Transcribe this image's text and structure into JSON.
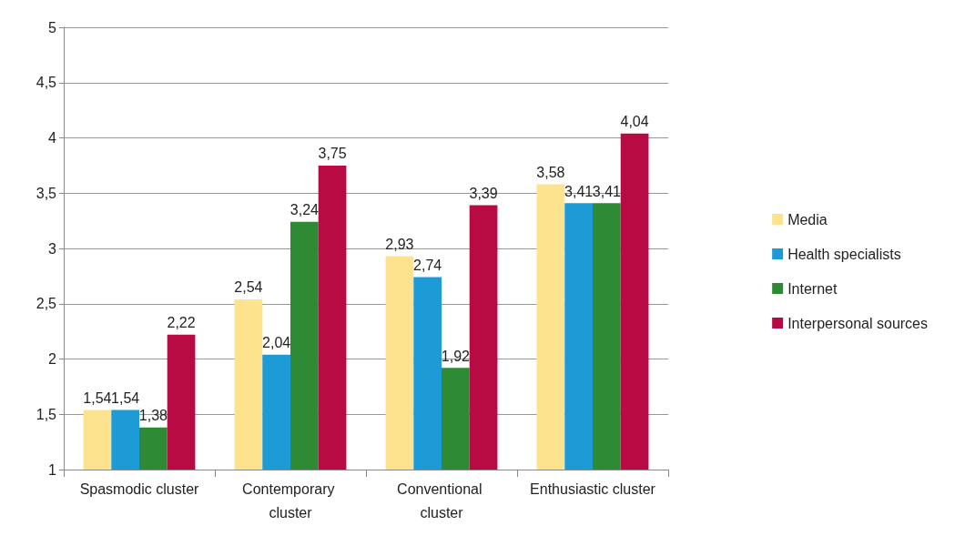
{
  "chart_data": {
    "type": "bar",
    "categories": [
      "Spasmodic cluster",
      "Contemporary cluster",
      "Conventional cluster",
      "Enthusiastic cluster"
    ],
    "series": [
      {
        "name": "Media",
        "color": "#fde38d",
        "values": [
          1.54,
          2.54,
          2.93,
          3.58
        ],
        "value_labels": [
          "1,54",
          "2,54",
          "2,93",
          "3,58"
        ]
      },
      {
        "name": "Health specialists",
        "color": "#1d9bd7",
        "values": [
          1.54,
          2.04,
          2.74,
          3.41
        ],
        "value_labels": [
          "1,54",
          "2,04",
          "2,74",
          "3,41"
        ]
      },
      {
        "name": "Internet",
        "color": "#2e8a34",
        "values": [
          1.38,
          3.24,
          1.92,
          3.41
        ],
        "value_labels": [
          "1,38",
          "3,24",
          "1,92",
          "3,41"
        ]
      },
      {
        "name": "Interpersonal sources",
        "color": "#b80b43",
        "values": [
          2.22,
          3.75,
          3.39,
          4.04
        ],
        "value_labels": [
          "2,22",
          "3,75",
          "3,39",
          "4,04"
        ]
      }
    ],
    "ylim": [
      1,
      5
    ],
    "yticks": [
      1,
      {
        "value": 1.5,
        "label": "1,5"
      },
      2,
      {
        "value": 2.5,
        "label": "2,5"
      },
      3,
      {
        "value": 3.5,
        "label": "3,5"
      },
      4,
      {
        "value": 4.5,
        "label": "4,5"
      },
      5
    ],
    "grid": "y",
    "legend": "right"
  }
}
